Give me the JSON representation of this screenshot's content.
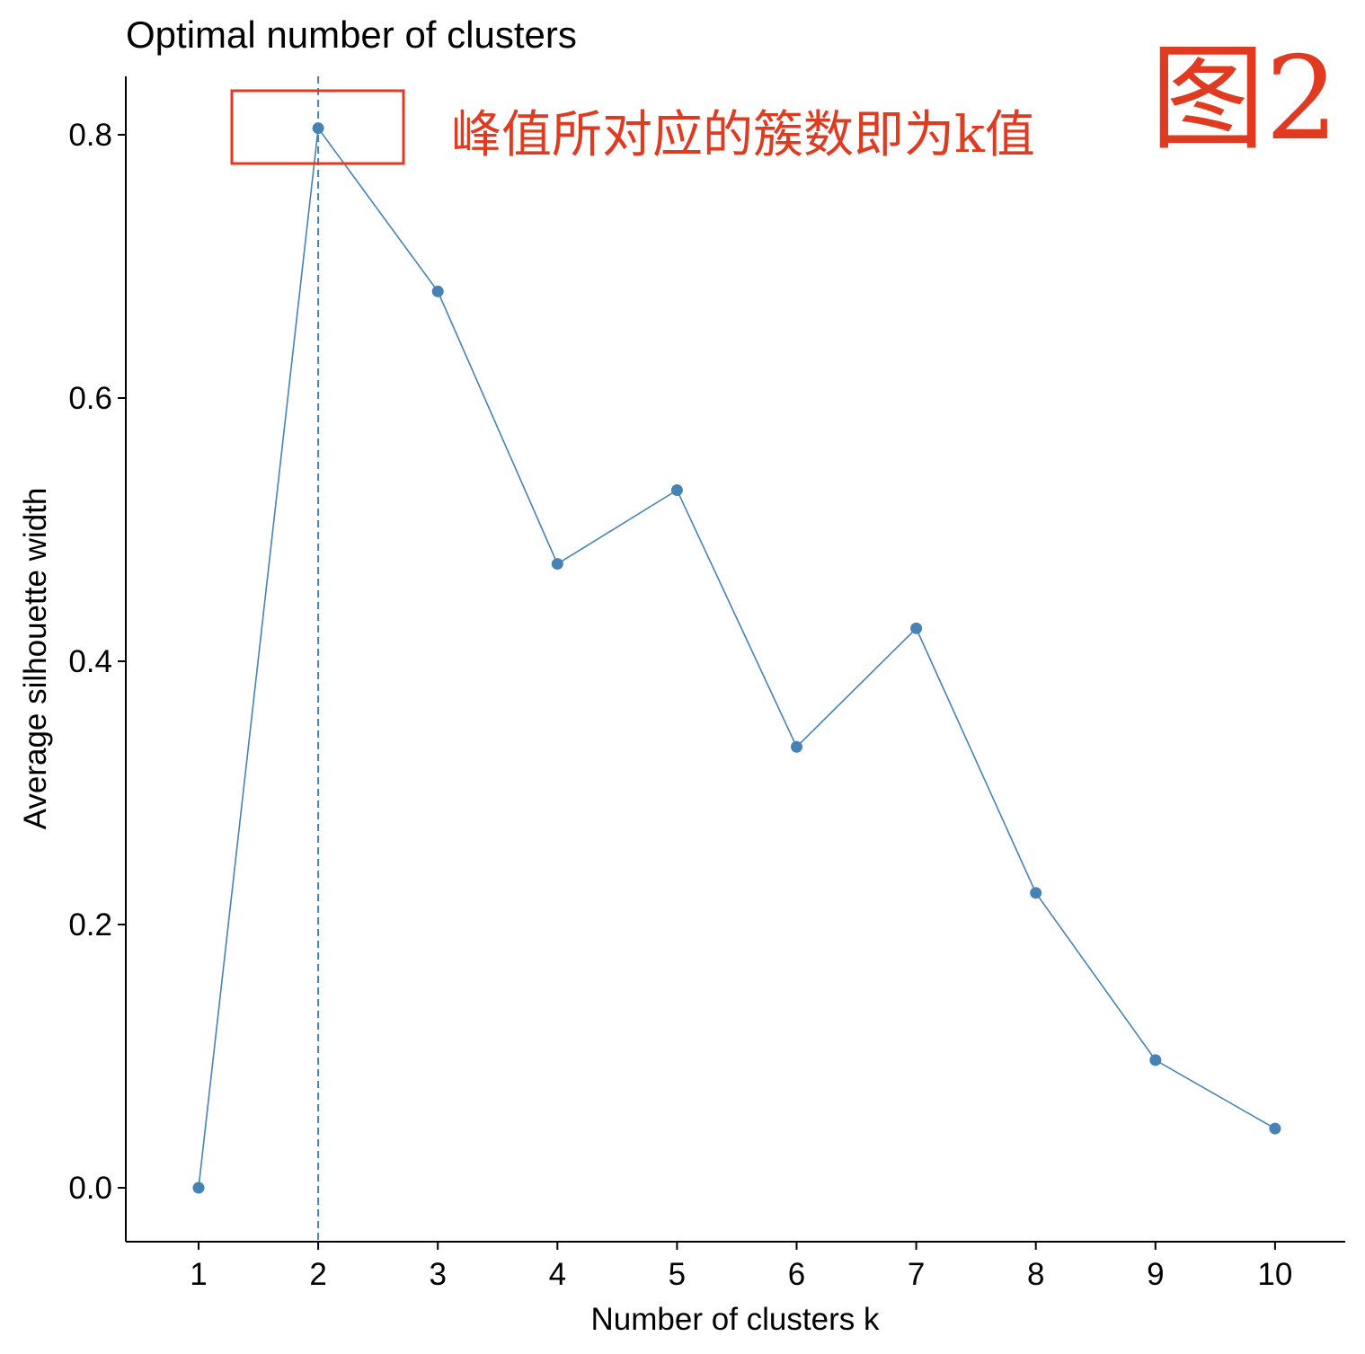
{
  "chart_data": {
    "type": "line",
    "title": "Optimal number of clusters",
    "xlabel": "Number of clusters k",
    "ylabel": "Average silhouette width",
    "categories": [
      "1",
      "2",
      "3",
      "4",
      "5",
      "6",
      "7",
      "8",
      "9",
      "10"
    ],
    "values": [
      0.0,
      0.805,
      0.681,
      0.474,
      0.53,
      0.335,
      0.425,
      0.224,
      0.097,
      0.045
    ],
    "ylim": [
      -0.04,
      0.845
    ],
    "yticks": [
      0.0,
      0.2,
      0.4,
      0.6,
      0.8
    ],
    "ytick_labels": [
      "0.0",
      "0.2",
      "0.4",
      "0.6",
      "0.8"
    ],
    "optimal_k": 2,
    "grid": false,
    "colors": {
      "series": "#4682b4",
      "annotation": "#e03a20"
    }
  },
  "annotation": {
    "text": "峰值所对应的簇数即为k值",
    "figure_label": "图2"
  }
}
